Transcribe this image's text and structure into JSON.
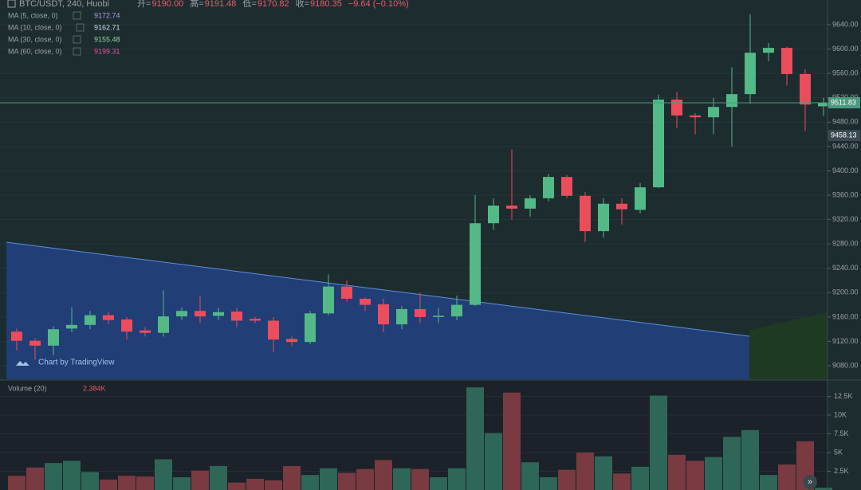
{
  "header": {
    "symbol": "BTC/USDT, 240, Huobi",
    "ohlc": [
      {
        "key": "开=",
        "value": "9190.00"
      },
      {
        "key": "高=",
        "value": "9191.48"
      },
      {
        "key": "低=",
        "value": "9170.82"
      },
      {
        "key": "收=",
        "value": "9180.35"
      }
    ],
    "change": "−9.64 (−0.10%)"
  },
  "indicators": [
    {
      "name": "MA (5, close, 0)",
      "value": 9172.74,
      "color": "#a99be6"
    },
    {
      "name": "MA (10, close, 0)",
      "value": 9162.71,
      "color": "#c9d8ea"
    },
    {
      "name": "MA (30, close, 0)",
      "value": 9155.48,
      "color": "#8fd19e"
    },
    {
      "name": "MA (60, close, 0)",
      "value": 9199.31,
      "color": "#d9559c"
    }
  ],
  "watermark": "Chart by TradingView",
  "chart_data": [
    {
      "type": "candlestick",
      "up_color": "#53b987",
      "down_color": "#eb4d5c",
      "grid": true,
      "ylim": [
        9057.8,
        9680.6
      ],
      "yticks": [
        {
          "value": 9080,
          "label": "9080.00"
        },
        {
          "value": 9120,
          "label": "9120.00"
        },
        {
          "value": 9160,
          "label": "9160.00"
        },
        {
          "value": 9200,
          "label": "9200.00"
        },
        {
          "value": 9240,
          "label": "9240.00"
        },
        {
          "value": 9280,
          "label": "9280.00"
        },
        {
          "value": 9320,
          "label": "9320.00"
        },
        {
          "value": 9360,
          "label": "9360.00"
        },
        {
          "value": 9400,
          "label": "9400.00"
        },
        {
          "value": 9440,
          "label": "9440.00"
        },
        {
          "value": 9480,
          "label": "9480.00"
        },
        {
          "value": 9520,
          "label": "9520.00"
        },
        {
          "value": 9560,
          "label": "9560.00"
        },
        {
          "value": 9600,
          "label": "9600.00"
        },
        {
          "value": 9640,
          "label": "9640.00"
        }
      ],
      "open": [
        9136,
        9121,
        9113,
        9141,
        9147,
        9163,
        9156,
        9138,
        9134,
        9161,
        9170,
        9162,
        9169,
        9157,
        9154,
        9124,
        9119,
        9166,
        9210,
        9190,
        9181,
        9148,
        9173,
        9160,
        9161,
        9180,
        9314,
        9343,
        9338,
        9355,
        9390,
        9359,
        9301,
        9346,
        9336,
        9373,
        9517,
        9491,
        9488,
        9505,
        9526,
        9594,
        9602,
        9559,
        9506
      ],
      "high": [
        9141,
        9125,
        9145,
        9176,
        9170,
        9168,
        9160,
        9143,
        9204,
        9176,
        9195,
        9175,
        9175,
        9160,
        9160,
        9128,
        9170,
        9230,
        9220,
        9192,
        9190,
        9178,
        9200,
        9175,
        9195,
        9360,
        9355,
        9435,
        9360,
        9395,
        9393,
        9365,
        9355,
        9355,
        9380,
        9525,
        9530,
        9495,
        9520,
        9570,
        9657,
        9610,
        9604,
        9567,
        9520
      ],
      "low": [
        9105,
        9090,
        9097,
        9135,
        9140,
        9148,
        9123,
        9128,
        9128,
        9155,
        9150,
        9155,
        9143,
        9150,
        9103,
        9112,
        9115,
        9163,
        9185,
        9170,
        9135,
        9140,
        9150,
        9150,
        9155,
        9178,
        9303,
        9320,
        9325,
        9350,
        9355,
        9283,
        9290,
        9312,
        9330,
        9372,
        9470,
        9460,
        9460,
        9440,
        9510,
        9580,
        9540,
        9465,
        9490
      ],
      "close": [
        9121,
        9113,
        9140,
        9147,
        9163,
        9155,
        9136,
        9134,
        9161,
        9170,
        9161,
        9168,
        9154,
        9154,
        9123,
        9119,
        9166,
        9210,
        9190,
        9180,
        9148,
        9173,
        9160,
        9162,
        9180,
        9314,
        9343,
        9338,
        9355,
        9390,
        9359,
        9301,
        9346,
        9337,
        9373,
        9517,
        9491,
        9488,
        9505,
        9526,
        9594,
        9602,
        9559,
        9509,
        9512
      ],
      "price_labels": [
        {
          "value": 9511.83,
          "color": "#4a9a7e"
        },
        {
          "value": 9458.13,
          "color": "#3a4a50"
        }
      ]
    },
    {
      "type": "bar",
      "title": "Volume (20)",
      "last_value": "2.384K",
      "grid": true,
      "ylim": [
        0,
        14570
      ],
      "yticks": [
        {
          "value": 2500,
          "label": "2.5K"
        },
        {
          "value": 5000,
          "label": "5K"
        },
        {
          "value": 7500,
          "label": "7.5K"
        },
        {
          "value": 10000,
          "label": "10K"
        },
        {
          "value": 12500,
          "label": "12.5K"
        }
      ],
      "up_color": "#2e6757",
      "down_color": "#7a3a42",
      "values": [
        1900,
        3000,
        3600,
        3900,
        2400,
        1400,
        1900,
        1800,
        4100,
        1700,
        2600,
        3200,
        1000,
        1500,
        1300,
        3200,
        2000,
        2900,
        2300,
        2800,
        4000,
        2900,
        2800,
        1700,
        2900,
        13700,
        7600,
        13000,
        3700,
        1700,
        2700,
        5000,
        4500,
        2200,
        3100,
        12600,
        4700,
        3900,
        4400,
        7100,
        8000,
        2000,
        3400,
        6500,
        300
      ]
    }
  ]
}
